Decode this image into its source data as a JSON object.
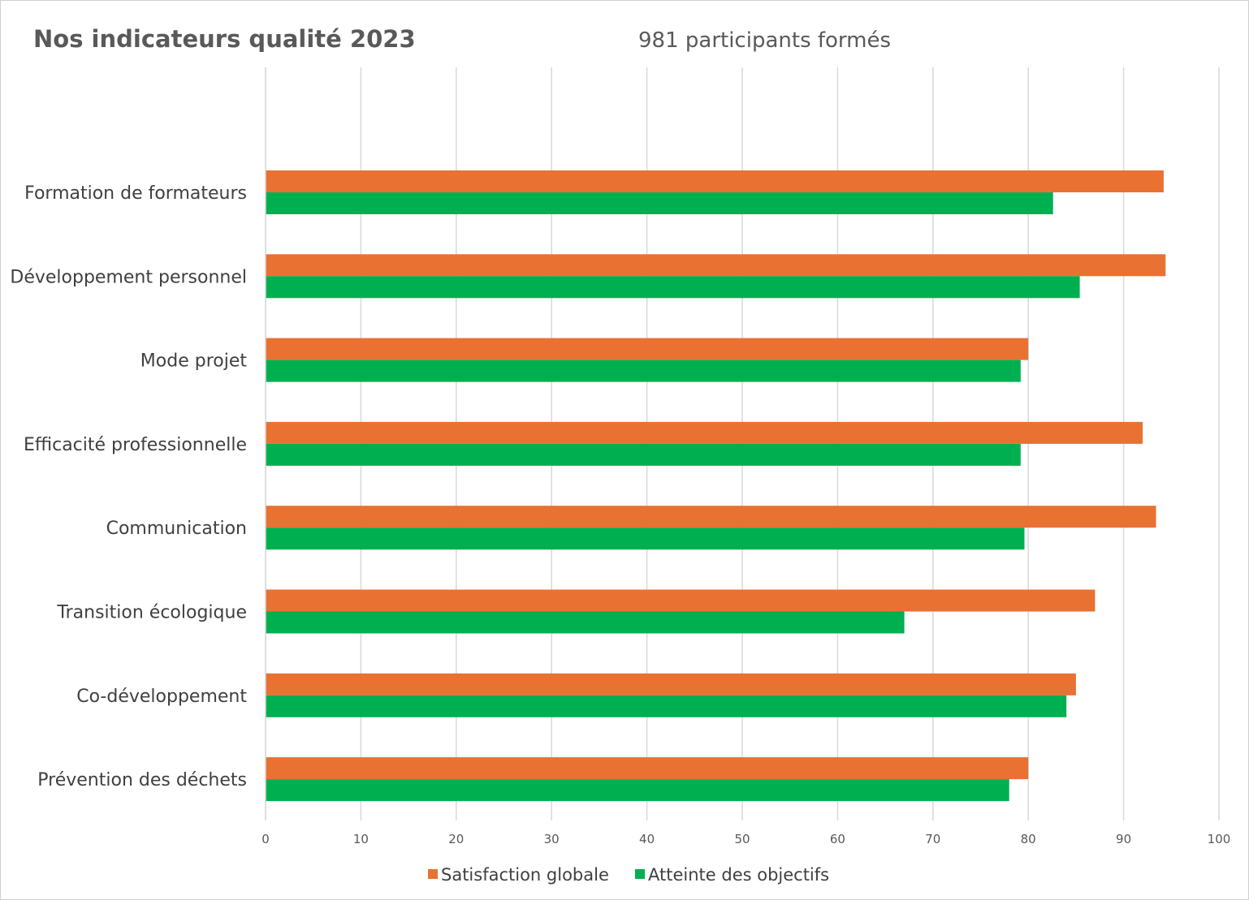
{
  "chart_data": {
    "type": "bar",
    "orientation": "horizontal",
    "title": "Nos indicateurs qualité 2023",
    "subtitle": "981 participants formés",
    "categories": [
      "Formation de formateurs",
      "Développement personnel",
      "Mode projet",
      "Efficacité professionnelle",
      "Communication",
      "Transition écologique",
      "Co-développement",
      "Prévention des déchets"
    ],
    "series": [
      {
        "name": "Satisfaction globale",
        "color": "#E97132",
        "values": [
          94.2,
          94.4,
          80,
          92,
          93.4,
          87,
          85,
          80
        ]
      },
      {
        "name": "Atteinte des objectifs",
        "color": "#00B050",
        "values": [
          82.6,
          85.4,
          79.2,
          79.2,
          79.6,
          67,
          84,
          78
        ]
      }
    ],
    "xlim": [
      0,
      100
    ],
    "xticks": [
      0,
      10,
      20,
      30,
      40,
      50,
      60,
      70,
      80,
      90,
      100
    ],
    "grid": true,
    "legend_position": "bottom"
  }
}
